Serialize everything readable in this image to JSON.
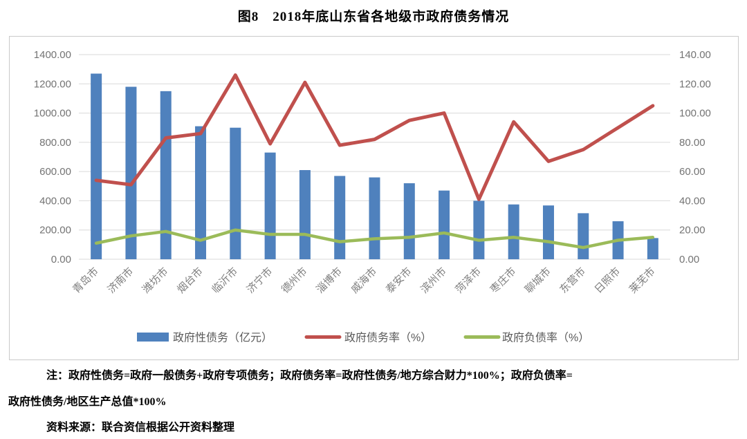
{
  "title": "图8　2018年底山东省各地级市政府债务情况",
  "notes": {
    "line1": "注：政府性债务=政府一般债务+政府专项债务；政府债务率=政府性债务/地方综合财力*100%；政府负债率=",
    "line2": "政府性债务/地区生产总值*100%",
    "source": "资料来源：联合资信根据公开资料整理"
  },
  "colors": {
    "bar_blue": "#4F81BD",
    "line_red": "#C0504D",
    "line_green": "#9BBB59",
    "grid": "#D9D9D9",
    "frame_border": "#C9C9C9",
    "axis_text": "#737373",
    "x_label_text": "#7F7F7F",
    "legend_text": "#595959"
  },
  "chart_data": {
    "type": "bar",
    "subtype": "bar-line-combo",
    "categories": [
      "青岛市",
      "济南市",
      "潍坊市",
      "烟台市",
      "临沂市",
      "济宁市",
      "德州市",
      "淄博市",
      "威海市",
      "泰安市",
      "滨州市",
      "菏泽市",
      "枣庄市",
      "聊城市",
      "东营市",
      "日照市",
      "莱芜市"
    ],
    "series": [
      {
        "name": "政府性债务（亿元）",
        "type": "bar",
        "axis": "left",
        "color": "#4F81BD",
        "values": [
          1270,
          1180,
          1150,
          910,
          900,
          730,
          610,
          570,
          560,
          520,
          470,
          400,
          375,
          368,
          315,
          260,
          145
        ]
      },
      {
        "name": "政府债务率（%）",
        "type": "line",
        "axis": "right",
        "color": "#C0504D",
        "values": [
          54,
          51,
          83,
          86,
          126,
          79,
          121,
          78,
          82,
          95,
          100,
          41,
          94,
          67,
          75,
          90,
          105
        ]
      },
      {
        "name": "政府负债率（%）",
        "type": "line",
        "axis": "right",
        "color": "#9BBB59",
        "values": [
          11,
          16,
          19,
          13,
          20,
          17,
          17,
          12,
          14,
          15,
          18,
          13,
          15,
          12,
          8,
          13,
          15
        ]
      }
    ],
    "left_axis": {
      "min": 0,
      "max": 1400,
      "step": 200,
      "tick_labels": [
        "1400.00",
        "1200.00",
        "1000.00",
        "800.00",
        "600.00",
        "400.00",
        "200.00",
        "0.00"
      ]
    },
    "right_axis": {
      "min": 0,
      "max": 140,
      "step": 20,
      "tick_labels": [
        "140.00",
        "120.00",
        "100.00",
        "80.00",
        "60.00",
        "40.00",
        "20.00",
        "0.00"
      ]
    },
    "grid": true,
    "legend_position": "bottom",
    "xlabel": "",
    "ylabel": ""
  }
}
